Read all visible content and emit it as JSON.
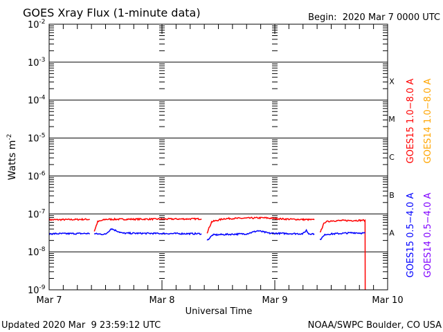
{
  "chart_data": {
    "type": "line",
    "title": "GOES Xray Flux (1-minute data)",
    "begin_label": "Begin:  2020 Mar 7 0000 UTC",
    "xlabel": "Universal Time",
    "ylabel": "Watts m",
    "ylabel_sup": "-2",
    "x_unit": "days since 2020 Mar 7 0000 UTC",
    "xlim": [
      0,
      3
    ],
    "ylim": [
      1e-09,
      0.01
    ],
    "yscale": "log",
    "x_ticks": [
      {
        "v": 0,
        "label": "Mar 7"
      },
      {
        "v": 1,
        "label": "Mar 8"
      },
      {
        "v": 2,
        "label": "Mar 9"
      },
      {
        "v": 3,
        "label": "Mar 10"
      }
    ],
    "y_ticks": [
      {
        "exp": -2
      },
      {
        "exp": -3
      },
      {
        "exp": -4
      },
      {
        "exp": -5
      },
      {
        "exp": -6
      },
      {
        "exp": -7
      },
      {
        "exp": -8
      },
      {
        "exp": -9
      }
    ],
    "flare_classes": [
      {
        "label": "X",
        "exp": -4
      },
      {
        "label": "M",
        "exp": -5
      },
      {
        "label": "C",
        "exp": -6
      },
      {
        "label": "B",
        "exp": -7
      },
      {
        "label": "A",
        "exp": -8
      }
    ],
    "grid": "horizontal at decades",
    "series": [
      {
        "name": "GOES15 1.0−8.0 A",
        "color": "#ff0000",
        "segments": [
          [
            [
              0,
              7e-08
            ],
            [
              0.36,
              7.2e-08
            ]
          ],
          [
            [
              0.4,
              3.5e-08
            ],
            [
              0.43,
              6.2e-08
            ],
            [
              0.5,
              7.2e-08
            ],
            [
              1.35,
              7.4e-08
            ]
          ],
          [
            [
              1.4,
              3.2e-08
            ],
            [
              1.44,
              6.2e-08
            ],
            [
              1.55,
              7.5e-08
            ],
            [
              1.9,
              7.9e-08
            ],
            [
              2.1,
              7.3e-08
            ],
            [
              2.35,
              7e-08
            ]
          ],
          [
            [
              2.4,
              3.2e-08
            ],
            [
              2.44,
              6e-08
            ],
            [
              2.5,
              6.6e-08
            ],
            [
              2.8,
              6.8e-08
            ],
            [
              2.801,
              1e-09
            ]
          ]
        ]
      },
      {
        "name": "GOES15 0.5−4.0 A",
        "color": "#0000ff",
        "segments": [
          [
            [
              0,
              3e-08
            ],
            [
              0.36,
              3.05e-08
            ]
          ],
          [
            [
              0.4,
              3e-08
            ],
            [
              0.5,
              2.9e-08
            ],
            [
              0.55,
              4.1e-08
            ],
            [
              0.65,
              3.1e-08
            ],
            [
              1.35,
              3e-08
            ]
          ],
          [
            [
              1.4,
              2e-08
            ],
            [
              1.45,
              2.8e-08
            ],
            [
              1.75,
              3e-08
            ],
            [
              1.85,
              3.6e-08
            ],
            [
              1.95,
              3.1e-08
            ],
            [
              2.25,
              3e-08
            ],
            [
              2.28,
              3.7e-08
            ],
            [
              2.3,
              3e-08
            ],
            [
              2.35,
              3e-08
            ]
          ],
          [
            [
              2.4,
              2.1e-08
            ],
            [
              2.45,
              2.9e-08
            ],
            [
              2.7,
              3.2e-08
            ],
            [
              2.8,
              3.1e-08
            ]
          ]
        ]
      }
    ],
    "legend": [
      {
        "label": "GOES15 1.0−8.0 A",
        "color": "#ff0000"
      },
      {
        "label": "GOES14 1.0−8.0 A",
        "color": "#ffa500"
      },
      {
        "label": "GOES15 0.5−4.0 A",
        "color": "#0000ff"
      },
      {
        "label": "GOES14 0.5−4.0 A",
        "color": "#8000ff"
      }
    ],
    "legend_placement": "right, vertical"
  },
  "footer": {
    "updated": "Updated 2020 Mar  9 23:59:12 UTC",
    "source": "NOAA/SWPC Boulder, CO USA"
  }
}
